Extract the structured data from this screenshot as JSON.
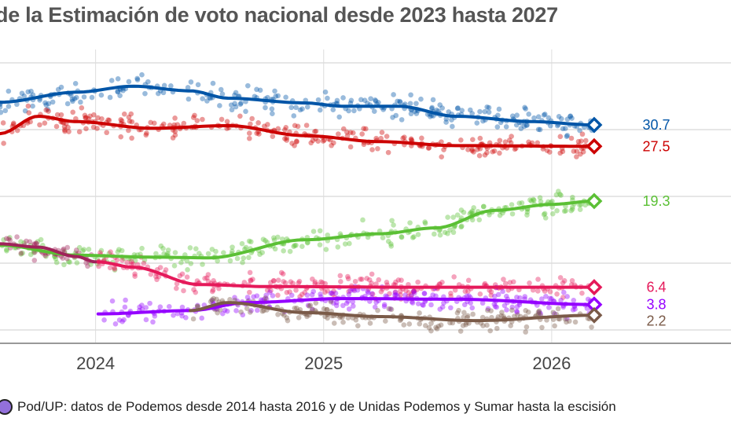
{
  "title": "de la Estimación de voto nacional desde 2023 hasta 2027",
  "footnote": {
    "icon": "purple-circle-marker",
    "color": "#9370db",
    "text": "Pod/UP: datos de Podemos desde 2014 hasta 2016 y de Unidas Podemos y Sumar hasta la escisión"
  },
  "chart_data": {
    "type": "line",
    "xlim": [
      "2023-08-01",
      "2026-10-15"
    ],
    "ylim": [
      -2,
      48
    ],
    "x_ticks": [
      "2024",
      "2025",
      "2026"
    ],
    "y_gridlines": [
      0,
      10,
      20,
      30,
      40
    ],
    "grid": true,
    "scatter_points_shown": true,
    "end_marker": "open-diamond",
    "series": [
      {
        "color": "#0055a7",
        "end_label": "30.7",
        "points": [
          [
            "2023-08-01",
            34.1
          ],
          [
            "2023-12-01",
            35.6
          ],
          [
            "2024-03-01",
            36.5
          ],
          [
            "2024-06-01",
            35.8
          ],
          [
            "2024-08-01",
            34.7
          ],
          [
            "2024-12-01",
            34.0
          ],
          [
            "2025-02-01",
            33.5
          ],
          [
            "2025-05-01",
            33.5
          ],
          [
            "2025-08-01",
            32.0
          ],
          [
            "2025-12-01",
            31.2
          ],
          [
            "2026-03-10",
            30.7
          ]
        ]
      },
      {
        "color": "#cc0000",
        "end_label": "27.5",
        "points": [
          [
            "2023-08-01",
            29.4
          ],
          [
            "2023-10-01",
            32.0
          ],
          [
            "2023-12-01",
            31.2
          ],
          [
            "2024-04-01",
            30.2
          ],
          [
            "2024-08-01",
            30.6
          ],
          [
            "2024-12-01",
            29.1
          ],
          [
            "2025-04-01",
            28.2
          ],
          [
            "2025-08-01",
            27.6
          ],
          [
            "2026-03-10",
            27.5
          ]
        ]
      },
      {
        "color": "#5bc035",
        "end_label": "19.3",
        "points": [
          [
            "2023-08-01",
            12.7
          ],
          [
            "2023-12-01",
            11.2
          ],
          [
            "2024-04-01",
            10.9
          ],
          [
            "2024-07-01",
            10.8
          ],
          [
            "2024-12-01",
            13.5
          ],
          [
            "2025-04-01",
            14.4
          ],
          [
            "2025-07-01",
            15.3
          ],
          [
            "2025-10-01",
            17.9
          ],
          [
            "2026-01-01",
            18.8
          ],
          [
            "2026-03-10",
            19.3
          ]
        ]
      },
      {
        "color": "#a0225a",
        "points": [
          [
            "2023-08-01",
            12.9
          ],
          [
            "2023-10-01",
            12.4
          ],
          [
            "2023-12-01",
            11.0
          ],
          [
            "2024-01-01",
            10.2
          ]
        ]
      },
      {
        "color": "#e5195a",
        "end_label": "6.4",
        "points": [
          [
            "2024-01-05",
            10.2
          ],
          [
            "2024-03-01",
            9.4
          ],
          [
            "2024-06-15",
            6.8
          ],
          [
            "2024-10-01",
            6.5
          ],
          [
            "2025-06-01",
            6.4
          ],
          [
            "2026-03-10",
            6.4
          ]
        ]
      },
      {
        "color": "#9400ff",
        "end_label": "3.8",
        "points": [
          [
            "2024-01-05",
            2.4
          ],
          [
            "2024-06-01",
            2.9
          ],
          [
            "2024-09-01",
            4.1
          ],
          [
            "2025-02-01",
            4.7
          ],
          [
            "2025-08-01",
            4.6
          ],
          [
            "2026-03-10",
            3.8
          ]
        ]
      },
      {
        "color": "#7a5a48",
        "end_label": "2.2",
        "points": [
          [
            "2024-06-01",
            2.9
          ],
          [
            "2024-08-01",
            4.1
          ],
          [
            "2024-12-01",
            2.6
          ],
          [
            "2025-04-01",
            2.0
          ],
          [
            "2025-09-01",
            1.4
          ],
          [
            "2026-03-10",
            2.2
          ]
        ]
      }
    ]
  }
}
